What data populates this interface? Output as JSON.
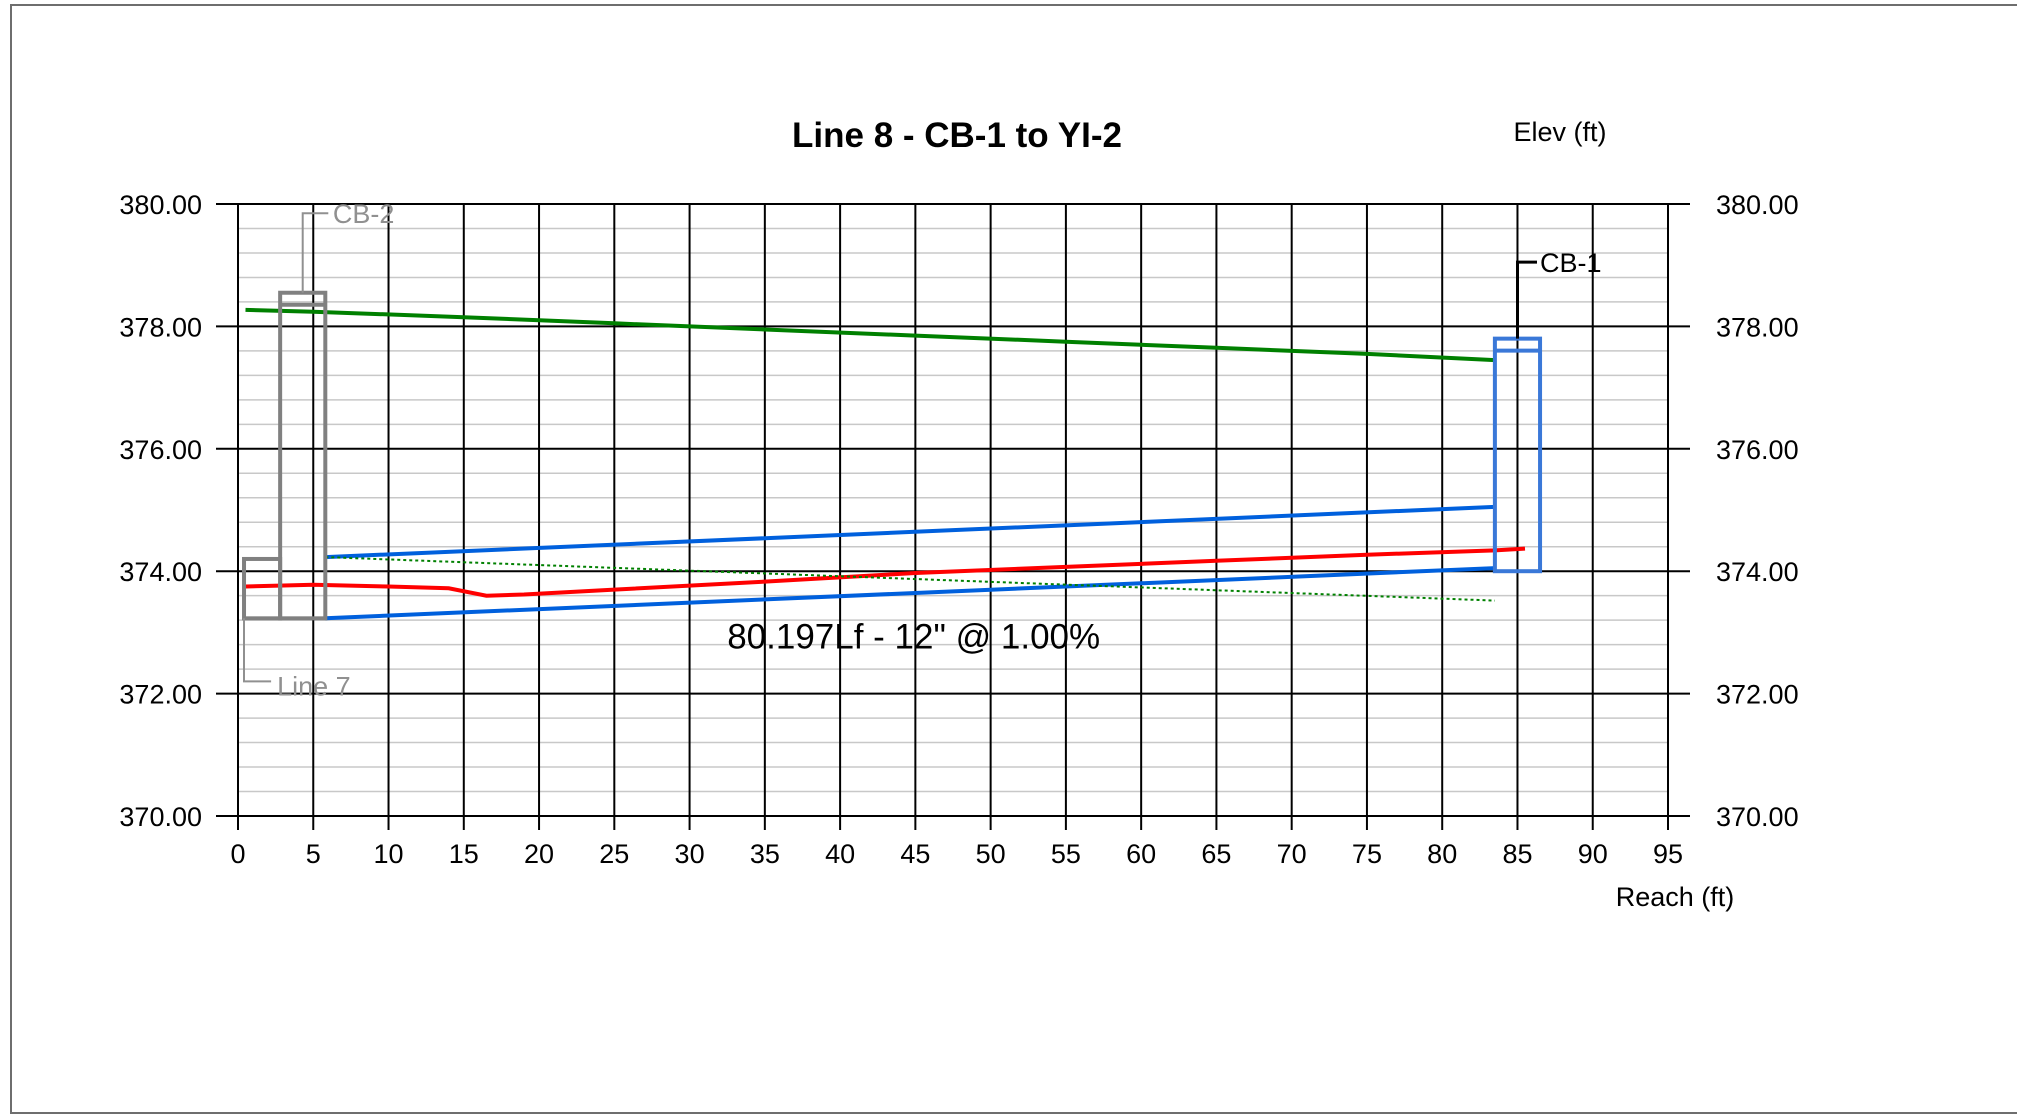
{
  "chart_data": {
    "type": "line",
    "title": "Line 8 - CB-1 to YI-2",
    "xlabel": "Reach (ft)",
    "ylabel": "Elev (ft)",
    "xlim": [
      0,
      95
    ],
    "ylim": [
      370,
      380
    ],
    "x_ticks": [
      0,
      5,
      10,
      15,
      20,
      25,
      30,
      35,
      40,
      45,
      50,
      55,
      60,
      65,
      70,
      75,
      80,
      85,
      90,
      95
    ],
    "x_tick_labels": [
      "0",
      "5",
      "10",
      "15",
      "20",
      "25",
      "30",
      "35",
      "40",
      "45",
      "50",
      "55",
      "60",
      "65",
      "70",
      "75",
      "80",
      "85",
      "90",
      "95"
    ],
    "y_ticks": [
      370,
      372,
      374,
      376,
      378,
      380
    ],
    "y_tick_labels": [
      "370.00",
      "372.00",
      "374.00",
      "376.00",
      "378.00",
      "380.00"
    ],
    "grid": true,
    "series": [
      {
        "color": "#008000",
        "style": "solid",
        "x": [
          0.5,
          5,
          15,
          25,
          35,
          45,
          55,
          65,
          75,
          83.5
        ],
        "y": [
          378.27,
          378.24,
          378.15,
          378.05,
          377.95,
          377.85,
          377.75,
          377.65,
          377.55,
          377.45
        ]
      },
      {
        "color": "#ff0000",
        "style": "solid",
        "x": [
          0.5,
          5,
          10,
          14,
          16.5,
          19,
          25,
          35,
          45,
          55,
          65,
          75,
          83.5,
          85.5
        ],
        "y": [
          373.75,
          373.78,
          373.75,
          373.72,
          373.6,
          373.62,
          373.7,
          373.83,
          373.97,
          374.07,
          374.17,
          374.27,
          374.34,
          374.37
        ]
      },
      {
        "color": "#0060dd",
        "style": "solid",
        "x": [
          5.8,
          83.5
        ],
        "y": [
          374.23,
          375.05
        ]
      },
      {
        "color": "#0060dd",
        "style": "solid",
        "x": [
          5.8,
          83.5
        ],
        "y": [
          373.23,
          374.05
        ]
      },
      {
        "color": "#008000",
        "style": "dotted",
        "x": [
          5.8,
          83.5
        ],
        "y": [
          374.23,
          373.52
        ]
      }
    ],
    "structures": [
      {
        "name": "CB-2",
        "color": "#808080",
        "x_start": 2.8,
        "x_end": 5.8,
        "bottom": 373.23,
        "top": 378.55
      },
      {
        "name": "Line 7",
        "color": "#808080",
        "x_start": 0.4,
        "x_end": 2.8,
        "bottom": 373.23,
        "top": 374.2
      },
      {
        "name": "CB-1",
        "color": "#3a78d8",
        "x_start": 83.5,
        "x_end": 86.5,
        "bottom": 374.0,
        "top": 377.8
      }
    ],
    "annotations": [
      {
        "text": "CB-2",
        "color": "#909090",
        "x": 6.3,
        "y": 379.85,
        "leader": [
          4.3,
          378.55,
          4.3,
          379.85,
          6.0,
          379.85
        ]
      },
      {
        "text": "Line 7",
        "color": "#909090",
        "x": 2.6,
        "y": 372.13,
        "leader": [
          0.4,
          373.23,
          0.4,
          372.2,
          2.2,
          372.2
        ]
      },
      {
        "text": "CB-1",
        "color": "#000000",
        "x": 86.5,
        "y": 379.05,
        "leader": [
          85.0,
          377.8,
          85.0,
          379.05,
          86.3,
          379.05
        ]
      },
      {
        "text": "80.197Lf - 12\" @ 1.00%",
        "color": "#000000",
        "x": 32.5,
        "y": 372.9
      }
    ]
  }
}
